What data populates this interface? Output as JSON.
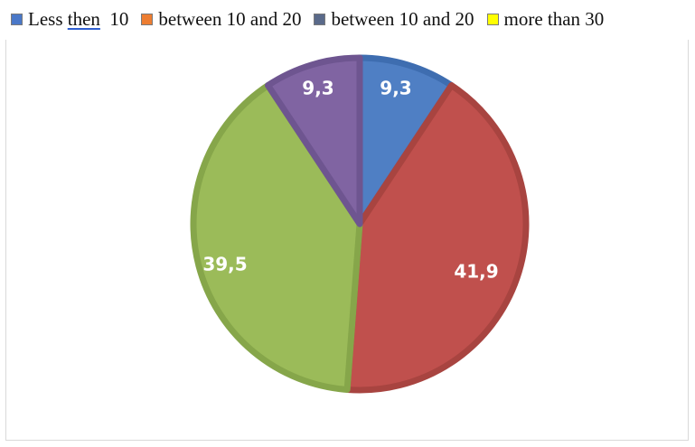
{
  "chart_data": {
    "type": "pie",
    "title": "",
    "legend_position": "top",
    "legend": [
      {
        "label_parts": [
          "Less ",
          "then",
          "  10"
        ],
        "color": "#4a78c8"
      },
      {
        "label_parts": [
          "between 10 and 20"
        ],
        "color": "#ed7d31"
      },
      {
        "label_parts": [
          "between 10 and 20"
        ],
        "color": "#5a6a8a"
      },
      {
        "label_parts": [
          "more than 30"
        ],
        "color": "#ffff00"
      }
    ],
    "slices": [
      {
        "value": 9.3,
        "label": "9,3",
        "color": "#4f7fc4",
        "border": "#3e6db0"
      },
      {
        "value": 41.9,
        "label": "41,9",
        "color": "#c0504d",
        "border": "#a84440"
      },
      {
        "value": 39.5,
        "label": "39,5",
        "color": "#9bbb59",
        "border": "#86a64a"
      },
      {
        "value": 9.3,
        "label": "9,3",
        "color": "#8064a2",
        "border": "#6e5590"
      }
    ]
  }
}
